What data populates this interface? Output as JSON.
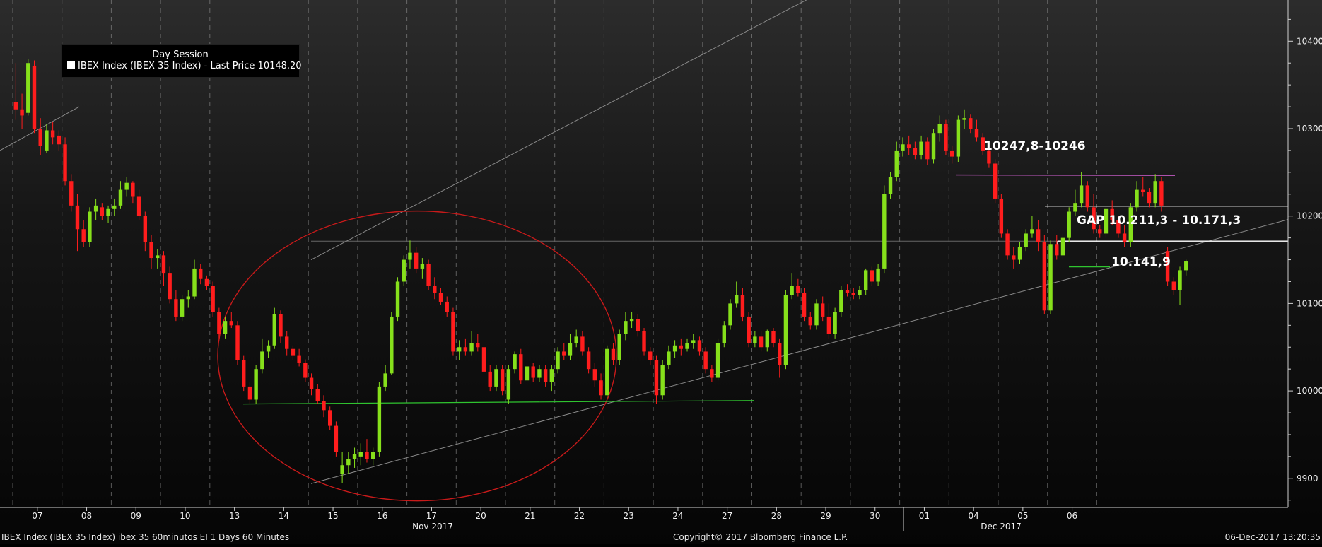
{
  "chart_data": {
    "type": "candlestick",
    "legend": {
      "title": "Day Session",
      "entry": "IBEX Index (IBEX 35 Index) - Last Price 10148.20",
      "swatch_color": "#ffffff"
    },
    "x_tick_labels": [
      "07",
      "08",
      "09",
      "10",
      "13",
      "14",
      "15",
      "16",
      "17",
      "20",
      "21",
      "22",
      "23",
      "24",
      "27",
      "28",
      "29",
      "30",
      "01",
      "04",
      "05",
      "06"
    ],
    "month_labels": [
      "Nov 2017",
      "Dec 2017"
    ],
    "y_tick_labels": [
      "9900",
      "10000",
      "10100",
      "10200",
      "10300",
      "10400"
    ],
    "ylim": [
      9830,
      10440
    ],
    "up_color": "#86e01b",
    "down_color": "#ff1d1d",
    "candles_per_day": 8,
    "candles": [
      {
        "o": 10330,
        "h": 10375,
        "l": 10310,
        "c": 10322
      },
      {
        "o": 10322,
        "h": 10340,
        "l": 10300,
        "c": 10315
      },
      {
        "o": 10318,
        "h": 10380,
        "l": 10315,
        "c": 10375
      },
      {
        "o": 10372,
        "h": 10378,
        "l": 10295,
        "c": 10300
      },
      {
        "o": 10300,
        "h": 10312,
        "l": 10270,
        "c": 10280
      },
      {
        "o": 10275,
        "h": 10305,
        "l": 10272,
        "c": 10298
      },
      {
        "o": 10298,
        "h": 10308,
        "l": 10282,
        "c": 10290
      },
      {
        "o": 10292,
        "h": 10298,
        "l": 10275,
        "c": 10282
      },
      {
        "o": 10282,
        "h": 10290,
        "l": 10235,
        "c": 10240
      },
      {
        "o": 10240,
        "h": 10248,
        "l": 10205,
        "c": 10212
      },
      {
        "o": 10212,
        "h": 10225,
        "l": 10160,
        "c": 10185
      },
      {
        "o": 10185,
        "h": 10195,
        "l": 10165,
        "c": 10170
      },
      {
        "o": 10170,
        "h": 10210,
        "l": 10165,
        "c": 10205
      },
      {
        "o": 10205,
        "h": 10220,
        "l": 10195,
        "c": 10212
      },
      {
        "o": 10210,
        "h": 10215,
        "l": 10195,
        "c": 10200
      },
      {
        "o": 10200,
        "h": 10212,
        "l": 10192,
        "c": 10208
      },
      {
        "o": 10208,
        "h": 10220,
        "l": 10200,
        "c": 10212
      },
      {
        "o": 10212,
        "h": 10240,
        "l": 10208,
        "c": 10230
      },
      {
        "o": 10230,
        "h": 10245,
        "l": 10222,
        "c": 10238
      },
      {
        "o": 10238,
        "h": 10240,
        "l": 10215,
        "c": 10222
      },
      {
        "o": 10222,
        "h": 10230,
        "l": 10195,
        "c": 10200
      },
      {
        "o": 10200,
        "h": 10205,
        "l": 10160,
        "c": 10170
      },
      {
        "o": 10170,
        "h": 10178,
        "l": 10140,
        "c": 10152
      },
      {
        "o": 10152,
        "h": 10162,
        "l": 10140,
        "c": 10155
      },
      {
        "o": 10155,
        "h": 10160,
        "l": 10120,
        "c": 10135
      },
      {
        "o": 10135,
        "h": 10142,
        "l": 10100,
        "c": 10105
      },
      {
        "o": 10105,
        "h": 10115,
        "l": 10080,
        "c": 10085
      },
      {
        "o": 10085,
        "h": 10110,
        "l": 10080,
        "c": 10105
      },
      {
        "o": 10105,
        "h": 10115,
        "l": 10095,
        "c": 10108
      },
      {
        "o": 10108,
        "h": 10150,
        "l": 10105,
        "c": 10140
      },
      {
        "o": 10140,
        "h": 10145,
        "l": 10122,
        "c": 10128
      },
      {
        "o": 10128,
        "h": 10132,
        "l": 10115,
        "c": 10120
      },
      {
        "o": 10120,
        "h": 10125,
        "l": 10085,
        "c": 10090
      },
      {
        "o": 10090,
        "h": 10095,
        "l": 10060,
        "c": 10065
      },
      {
        "o": 10065,
        "h": 10085,
        "l": 10060,
        "c": 10080
      },
      {
        "o": 10080,
        "h": 10090,
        "l": 10072,
        "c": 10075
      },
      {
        "o": 10075,
        "h": 10080,
        "l": 10030,
        "c": 10035
      },
      {
        "o": 10035,
        "h": 10040,
        "l": 10000,
        "c": 10005
      },
      {
        "o": 10005,
        "h": 10010,
        "l": 9985,
        "c": 9990
      },
      {
        "o": 9990,
        "h": 10030,
        "l": 9985,
        "c": 10025
      },
      {
        "o": 10025,
        "h": 10060,
        "l": 10020,
        "c": 10045
      },
      {
        "o": 10045,
        "h": 10058,
        "l": 10038,
        "c": 10052
      },
      {
        "o": 10052,
        "h": 10095,
        "l": 10048,
        "c": 10088
      },
      {
        "o": 10088,
        "h": 10092,
        "l": 10055,
        "c": 10062
      },
      {
        "o": 10062,
        "h": 10068,
        "l": 10040,
        "c": 10048
      },
      {
        "o": 10048,
        "h": 10052,
        "l": 10035,
        "c": 10040
      },
      {
        "o": 10040,
        "h": 10048,
        "l": 10028,
        "c": 10032
      },
      {
        "o": 10032,
        "h": 10036,
        "l": 10010,
        "c": 10015
      },
      {
        "o": 10015,
        "h": 10020,
        "l": 9995,
        "c": 10002
      },
      {
        "o": 10002,
        "h": 10008,
        "l": 9985,
        "c": 9988
      },
      {
        "o": 9988,
        "h": 9995,
        "l": 9970,
        "c": 9978
      },
      {
        "o": 9978,
        "h": 9982,
        "l": 9955,
        "c": 9960
      },
      {
        "o": 9960,
        "h": 9965,
        "l": 9925,
        "c": 9930
      },
      {
        "o": 9905,
        "h": 9930,
        "l": 9895,
        "c": 9915
      },
      {
        "o": 9915,
        "h": 9930,
        "l": 9905,
        "c": 9922
      },
      {
        "o": 9922,
        "h": 9935,
        "l": 9912,
        "c": 9928
      },
      {
        "o": 9925,
        "h": 9940,
        "l": 9915,
        "c": 9930
      },
      {
        "o": 9930,
        "h": 9945,
        "l": 9918,
        "c": 9922
      },
      {
        "o": 9922,
        "h": 9935,
        "l": 9915,
        "c": 9930
      },
      {
        "o": 9930,
        "h": 10010,
        "l": 9925,
        "c": 10005
      },
      {
        "o": 10005,
        "h": 10030,
        "l": 10000,
        "c": 10020
      },
      {
        "o": 10020,
        "h": 10090,
        "l": 10018,
        "c": 10085
      },
      {
        "o": 10085,
        "h": 10130,
        "l": 10080,
        "c": 10125
      },
      {
        "o": 10125,
        "h": 10155,
        "l": 10120,
        "c": 10150
      },
      {
        "o": 10150,
        "h": 10172,
        "l": 10140,
        "c": 10158
      },
      {
        "o": 10158,
        "h": 10165,
        "l": 10135,
        "c": 10140
      },
      {
        "o": 10140,
        "h": 10152,
        "l": 10128,
        "c": 10145
      },
      {
        "o": 10145,
        "h": 10150,
        "l": 10115,
        "c": 10120
      },
      {
        "o": 10120,
        "h": 10130,
        "l": 10105,
        "c": 10112
      },
      {
        "o": 10112,
        "h": 10118,
        "l": 10098,
        "c": 10102
      },
      {
        "o": 10102,
        "h": 10108,
        "l": 10085,
        "c": 10090
      },
      {
        "o": 10090,
        "h": 10095,
        "l": 10040,
        "c": 10045
      },
      {
        "o": 10045,
        "h": 10058,
        "l": 10035,
        "c": 10050
      },
      {
        "o": 10050,
        "h": 10060,
        "l": 10040,
        "c": 10045
      },
      {
        "o": 10045,
        "h": 10068,
        "l": 10040,
        "c": 10055
      },
      {
        "o": 10055,
        "h": 10065,
        "l": 10045,
        "c": 10050
      },
      {
        "o": 10050,
        "h": 10060,
        "l": 10015,
        "c": 10022
      },
      {
        "o": 10022,
        "h": 10030,
        "l": 10000,
        "c": 10005
      },
      {
        "o": 10005,
        "h": 10030,
        "l": 10000,
        "c": 10025
      },
      {
        "o": 10025,
        "h": 10030,
        "l": 9995,
        "c": 10000
      },
      {
        "o": 9990,
        "h": 10030,
        "l": 9985,
        "c": 10025
      },
      {
        "o": 10025,
        "h": 10045,
        "l": 10020,
        "c": 10042
      },
      {
        "o": 10042,
        "h": 10048,
        "l": 10008,
        "c": 10012
      },
      {
        "o": 10012,
        "h": 10035,
        "l": 10008,
        "c": 10028
      },
      {
        "o": 10028,
        "h": 10032,
        "l": 10010,
        "c": 10015
      },
      {
        "o": 10015,
        "h": 10030,
        "l": 10010,
        "c": 10025
      },
      {
        "o": 10025,
        "h": 10030,
        "l": 10005,
        "c": 10010
      },
      {
        "o": 10010,
        "h": 10030,
        "l": 10000,
        "c": 10025
      },
      {
        "o": 10025,
        "h": 10050,
        "l": 10020,
        "c": 10045
      },
      {
        "o": 10045,
        "h": 10055,
        "l": 10035,
        "c": 10040
      },
      {
        "o": 10040,
        "h": 10065,
        "l": 10035,
        "c": 10055
      },
      {
        "o": 10055,
        "h": 10070,
        "l": 10050,
        "c": 10062
      },
      {
        "o": 10062,
        "h": 10068,
        "l": 10040,
        "c": 10045
      },
      {
        "o": 10045,
        "h": 10050,
        "l": 10020,
        "c": 10025
      },
      {
        "o": 10025,
        "h": 10032,
        "l": 10005,
        "c": 10012
      },
      {
        "o": 10012,
        "h": 10020,
        "l": 9990,
        "c": 9995
      },
      {
        "o": 9995,
        "h": 10052,
        "l": 9992,
        "c": 10048
      },
      {
        "o": 10048,
        "h": 10055,
        "l": 10030,
        "c": 10035
      },
      {
        "o": 10035,
        "h": 10070,
        "l": 10030,
        "c": 10065
      },
      {
        "o": 10065,
        "h": 10090,
        "l": 10058,
        "c": 10080
      },
      {
        "o": 10080,
        "h": 10090,
        "l": 10072,
        "c": 10082
      },
      {
        "o": 10082,
        "h": 10088,
        "l": 10062,
        "c": 10068
      },
      {
        "o": 10068,
        "h": 10072,
        "l": 10040,
        "c": 10045
      },
      {
        "o": 10045,
        "h": 10050,
        "l": 10030,
        "c": 10035
      },
      {
        "o": 10035,
        "h": 10040,
        "l": 9985,
        "c": 9995
      },
      {
        "o": 9995,
        "h": 10035,
        "l": 9990,
        "c": 10030
      },
      {
        "o": 10030,
        "h": 10052,
        "l": 10025,
        "c": 10045
      },
      {
        "o": 10045,
        "h": 10058,
        "l": 10038,
        "c": 10052
      },
      {
        "o": 10052,
        "h": 10060,
        "l": 10040,
        "c": 10048
      },
      {
        "o": 10048,
        "h": 10060,
        "l": 10045,
        "c": 10055
      },
      {
        "o": 10055,
        "h": 10065,
        "l": 10048,
        "c": 10058
      },
      {
        "o": 10058,
        "h": 10062,
        "l": 10040,
        "c": 10045
      },
      {
        "o": 10045,
        "h": 10050,
        "l": 10020,
        "c": 10025
      },
      {
        "o": 10025,
        "h": 10030,
        "l": 10010,
        "c": 10015
      },
      {
        "o": 10015,
        "h": 10060,
        "l": 10012,
        "c": 10055
      },
      {
        "o": 10055,
        "h": 10080,
        "l": 10050,
        "c": 10075
      },
      {
        "o": 10075,
        "h": 10105,
        "l": 10070,
        "c": 10100
      },
      {
        "o": 10100,
        "h": 10125,
        "l": 10095,
        "c": 10110
      },
      {
        "o": 10110,
        "h": 10118,
        "l": 10080,
        "c": 10085
      },
      {
        "o": 10085,
        "h": 10090,
        "l": 10050,
        "c": 10055
      },
      {
        "o": 10055,
        "h": 10068,
        "l": 10050,
        "c": 10062
      },
      {
        "o": 10062,
        "h": 10068,
        "l": 10045,
        "c": 10050
      },
      {
        "o": 10050,
        "h": 10070,
        "l": 10045,
        "c": 10068
      },
      {
        "o": 10068,
        "h": 10072,
        "l": 10050,
        "c": 10055
      },
      {
        "o": 10055,
        "h": 10060,
        "l": 10015,
        "c": 10030
      },
      {
        "o": 10030,
        "h": 10115,
        "l": 10025,
        "c": 10110
      },
      {
        "o": 10110,
        "h": 10135,
        "l": 10105,
        "c": 10120
      },
      {
        "o": 10120,
        "h": 10128,
        "l": 10108,
        "c": 10112
      },
      {
        "o": 10112,
        "h": 10118,
        "l": 10080,
        "c": 10085
      },
      {
        "o": 10085,
        "h": 10090,
        "l": 10070,
        "c": 10075
      },
      {
        "o": 10075,
        "h": 10105,
        "l": 10070,
        "c": 10100
      },
      {
        "o": 10100,
        "h": 10108,
        "l": 10080,
        "c": 10085
      },
      {
        "o": 10085,
        "h": 10100,
        "l": 10060,
        "c": 10065
      },
      {
        "o": 10065,
        "h": 10095,
        "l": 10060,
        "c": 10090
      },
      {
        "o": 10090,
        "h": 10120,
        "l": 10085,
        "c": 10115
      },
      {
        "o": 10115,
        "h": 10122,
        "l": 10108,
        "c": 10112
      },
      {
        "o": 10112,
        "h": 10118,
        "l": 10105,
        "c": 10110
      },
      {
        "o": 10110,
        "h": 10120,
        "l": 10105,
        "c": 10115
      },
      {
        "o": 10115,
        "h": 10140,
        "l": 10110,
        "c": 10138
      },
      {
        "o": 10138,
        "h": 10142,
        "l": 10120,
        "c": 10125
      },
      {
        "o": 10125,
        "h": 10145,
        "l": 10120,
        "c": 10140
      },
      {
        "o": 10140,
        "h": 10235,
        "l": 10135,
        "c": 10225
      },
      {
        "o": 10225,
        "h": 10250,
        "l": 10220,
        "c": 10245
      },
      {
        "o": 10245,
        "h": 10285,
        "l": 10240,
        "c": 10275
      },
      {
        "o": 10275,
        "h": 10290,
        "l": 10268,
        "c": 10282
      },
      {
        "o": 10282,
        "h": 10292,
        "l": 10270,
        "c": 10278
      },
      {
        "o": 10278,
        "h": 10285,
        "l": 10265,
        "c": 10270
      },
      {
        "o": 10270,
        "h": 10292,
        "l": 10265,
        "c": 10285
      },
      {
        "o": 10285,
        "h": 10290,
        "l": 10258,
        "c": 10265
      },
      {
        "o": 10265,
        "h": 10300,
        "l": 10260,
        "c": 10295
      },
      {
        "o": 10295,
        "h": 10315,
        "l": 10285,
        "c": 10305
      },
      {
        "o": 10305,
        "h": 10310,
        "l": 10270,
        "c": 10275
      },
      {
        "o": 10275,
        "h": 10280,
        "l": 10260,
        "c": 10268
      },
      {
        "o": 10268,
        "h": 10315,
        "l": 10262,
        "c": 10310
      },
      {
        "o": 10310,
        "h": 10322,
        "l": 10300,
        "c": 10312
      },
      {
        "o": 10312,
        "h": 10316,
        "l": 10295,
        "c": 10300
      },
      {
        "o": 10300,
        "h": 10310,
        "l": 10285,
        "c": 10290
      },
      {
        "o": 10290,
        "h": 10295,
        "l": 10270,
        "c": 10275
      },
      {
        "o": 10275,
        "h": 10280,
        "l": 10255,
        "c": 10260
      },
      {
        "o": 10260,
        "h": 10265,
        "l": 10215,
        "c": 10220
      },
      {
        "o": 10220,
        "h": 10225,
        "l": 10175,
        "c": 10180
      },
      {
        "o": 10180,
        "h": 10185,
        "l": 10150,
        "c": 10155
      },
      {
        "o": 10155,
        "h": 10165,
        "l": 10140,
        "c": 10150
      },
      {
        "o": 10150,
        "h": 10170,
        "l": 10145,
        "c": 10165
      },
      {
        "o": 10165,
        "h": 10185,
        "l": 10160,
        "c": 10180
      },
      {
        "o": 10180,
        "h": 10200,
        "l": 10175,
        "c": 10185
      },
      {
        "o": 10185,
        "h": 10195,
        "l": 10160,
        "c": 10170
      },
      {
        "o": 10170,
        "h": 10178,
        "l": 10088,
        "c": 10092
      },
      {
        "o": 10092,
        "h": 10172,
        "l": 10088,
        "c": 10168
      },
      {
        "o": 10168,
        "h": 10178,
        "l": 10150,
        "c": 10155
      },
      {
        "o": 10155,
        "h": 10180,
        "l": 10150,
        "c": 10175
      },
      {
        "o": 10175,
        "h": 10210,
        "l": 10170,
        "c": 10205
      },
      {
        "o": 10205,
        "h": 10230,
        "l": 10200,
        "c": 10215
      },
      {
        "o": 10215,
        "h": 10250,
        "l": 10210,
        "c": 10235
      },
      {
        "o": 10235,
        "h": 10240,
        "l": 10205,
        "c": 10210
      },
      {
        "o": 10210,
        "h": 10225,
        "l": 10180,
        "c": 10185
      },
      {
        "o": 10185,
        "h": 10190,
        "l": 10175,
        "c": 10180
      },
      {
        "o": 10180,
        "h": 10212,
        "l": 10175,
        "c": 10208
      },
      {
        "o": 10208,
        "h": 10218,
        "l": 10190,
        "c": 10195
      },
      {
        "o": 10195,
        "h": 10200,
        "l": 10175,
        "c": 10180
      },
      {
        "o": 10180,
        "h": 10190,
        "l": 10165,
        "c": 10170
      },
      {
        "o": 10170,
        "h": 10215,
        "l": 10165,
        "c": 10210
      },
      {
        "o": 10210,
        "h": 10240,
        "l": 10205,
        "c": 10230
      },
      {
        "o": 10230,
        "h": 10245,
        "l": 10222,
        "c": 10228
      },
      {
        "o": 10228,
        "h": 10232,
        "l": 10210,
        "c": 10215
      },
      {
        "o": 10215,
        "h": 10248,
        "l": 10210,
        "c": 10240
      },
      {
        "o": 10240,
        "h": 10245,
        "l": 10205,
        "c": 10212
      },
      {
        "o": 10160,
        "h": 10165,
        "l": 10120,
        "c": 10125
      },
      {
        "o": 10125,
        "h": 10130,
        "l": 10110,
        "c": 10115
      },
      {
        "o": 10115,
        "h": 10142,
        "l": 10098,
        "c": 10138
      },
      {
        "o": 10138,
        "h": 10150,
        "l": 10132,
        "c": 10148
      }
    ]
  },
  "annotations": {
    "resistance_label": "10247,8-10246",
    "gap_label": "GAP 10.211,3 - 10.171,3",
    "support_label": "10.141,9",
    "resistance_level": 10247,
    "gap_top": 10211.3,
    "gap_bottom": 10171.3,
    "support_level": 10141.9,
    "support_line_level": 9987,
    "resistance_line_color": "#c45bc4",
    "gap_line_color": "#ffffff",
    "support_line_color": "#2fc42f",
    "ellipse_color": "#c81a1a",
    "channel_color": "#8a8a8a"
  },
  "footer": {
    "left": "IBEX Index (IBEX 35 Index) ibex 35 60minutos EI 1 Days 60 Minutes",
    "center": "Copyright© 2017 Bloomberg Finance L.P.",
    "right": "06-Dec-2017 13:20:35"
  }
}
